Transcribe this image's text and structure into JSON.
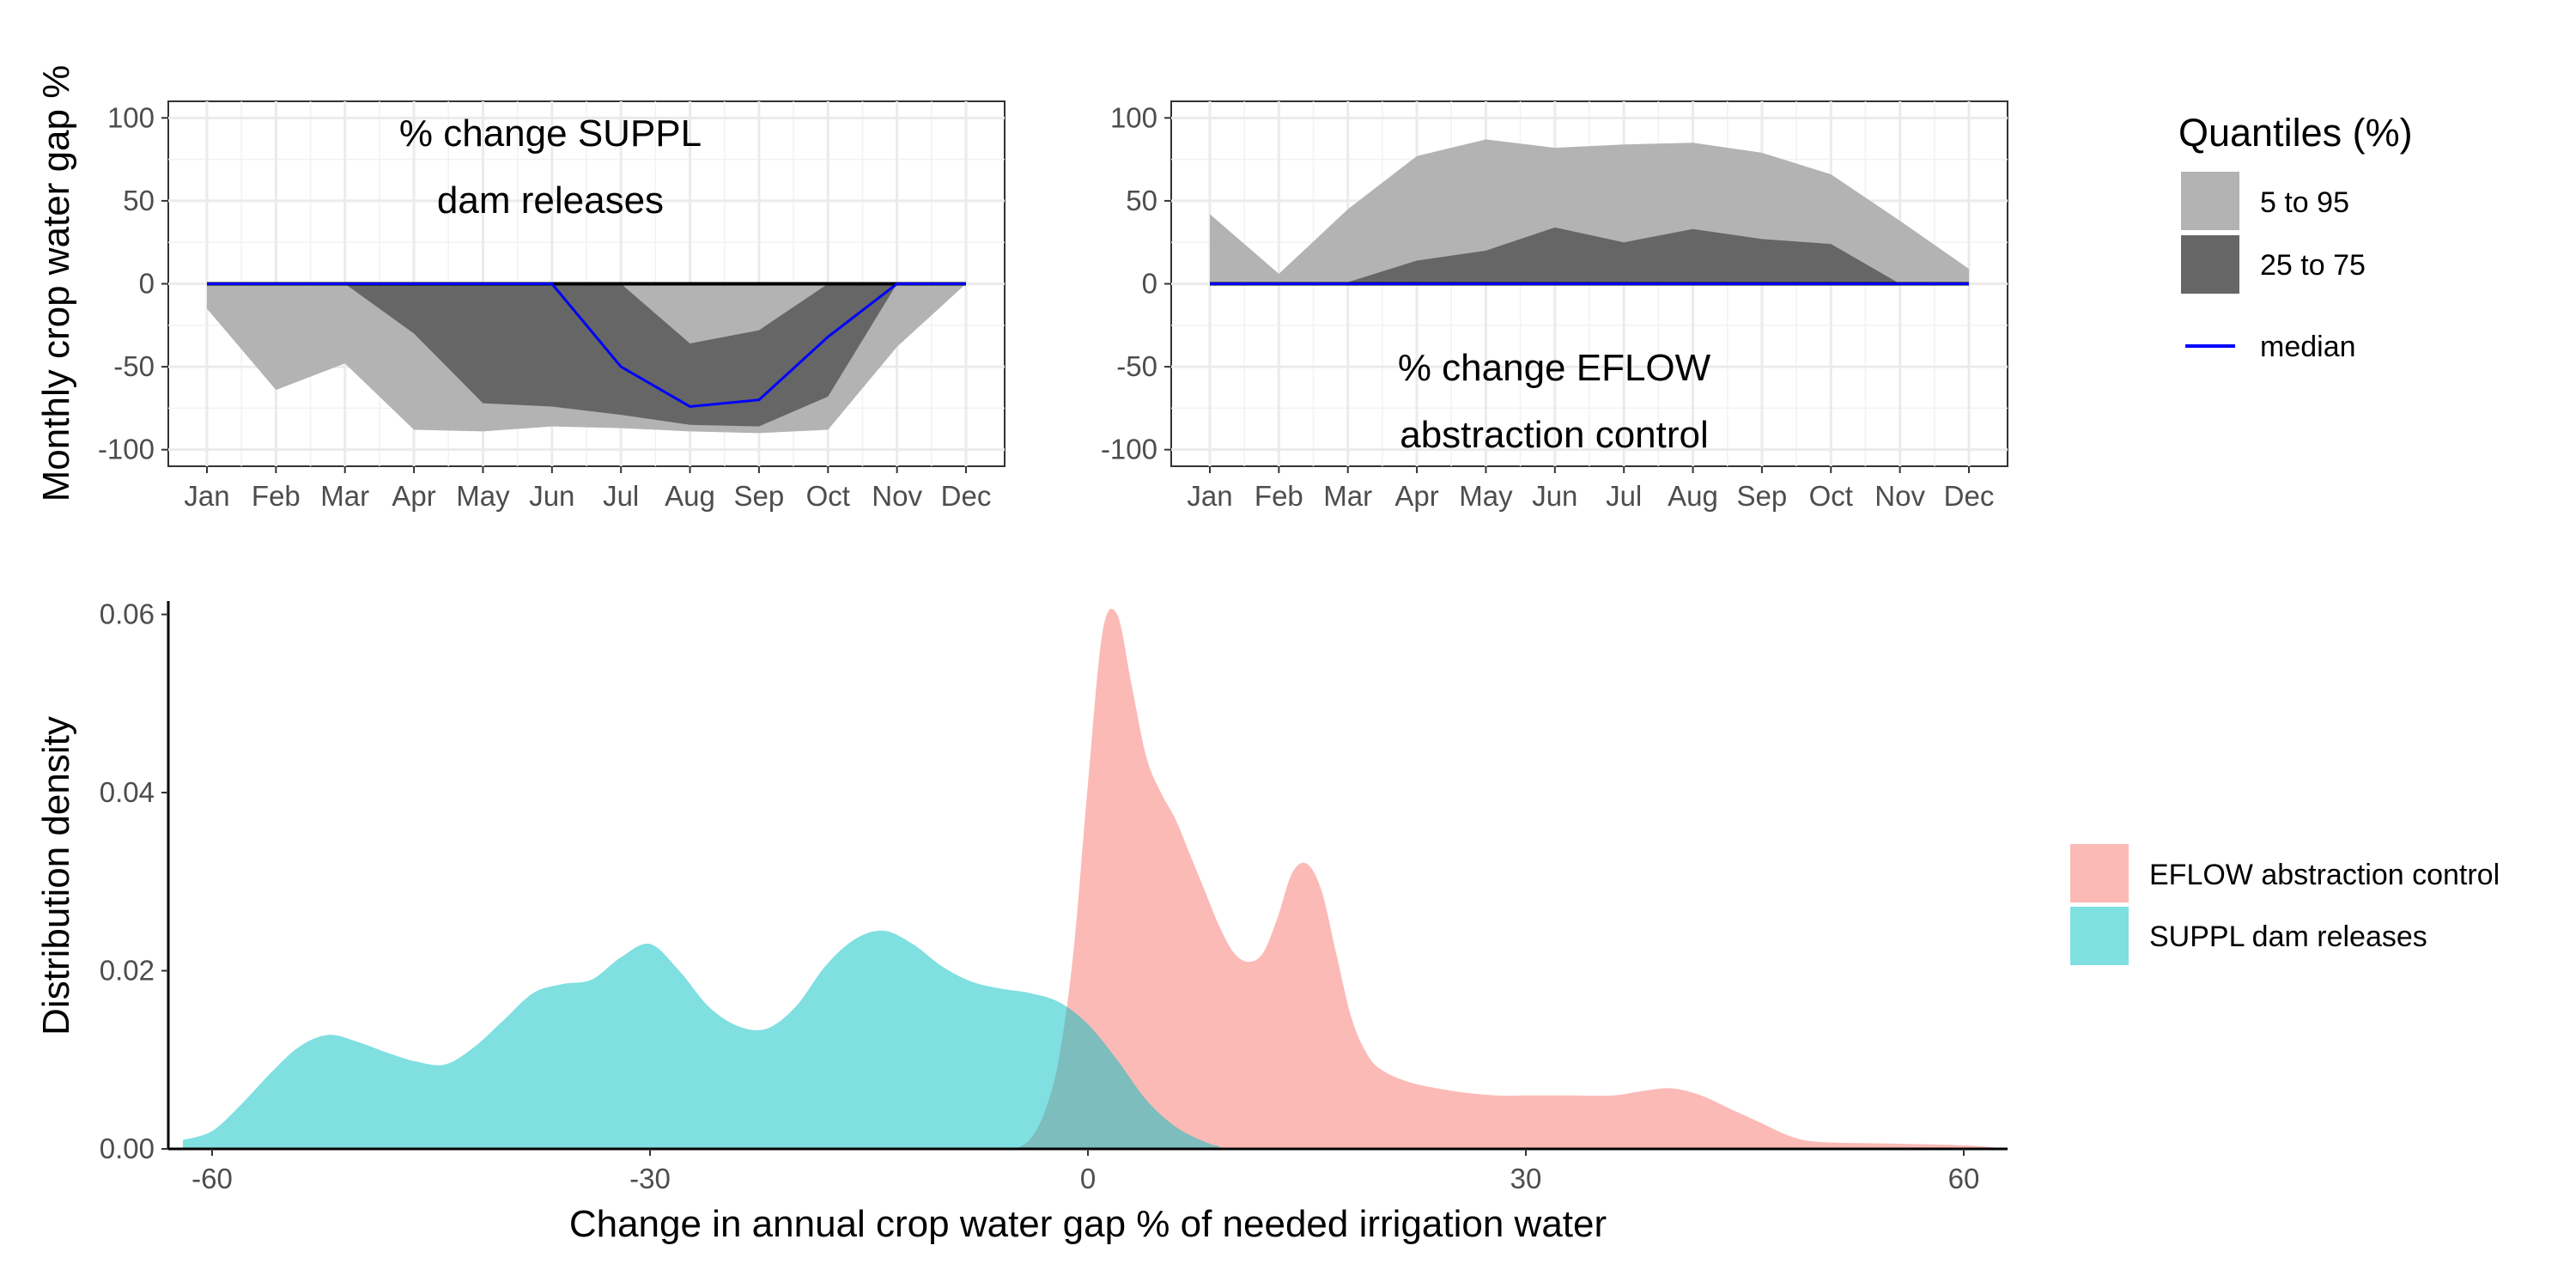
{
  "chart_data": [
    {
      "type": "area",
      "id": "suppl",
      "title_line1": "% change SUPPL",
      "title_line2": "dam releases",
      "ylabel": "Monthly crop water gap %",
      "ylim": [
        -110,
        110
      ],
      "yticks": [
        100,
        50,
        0,
        -50,
        -100
      ],
      "categories": [
        "Jan",
        "Feb",
        "Mar",
        "Apr",
        "May",
        "Jun",
        "Jul",
        "Aug",
        "Sep",
        "Oct",
        "Nov",
        "Dec"
      ],
      "q5": [
        -15,
        -64,
        -48,
        -88,
        -89,
        -86,
        -87,
        -89,
        -90,
        -88,
        -38,
        0
      ],
      "q25": [
        0,
        0,
        0,
        -30,
        -72,
        -74,
        -79,
        -85,
        -86,
        -68,
        0,
        0
      ],
      "q75": [
        0,
        0,
        0,
        0,
        0,
        0,
        0,
        -36,
        -28,
        0,
        0,
        0
      ],
      "q95": [
        0,
        0,
        0,
        0,
        0,
        0,
        0,
        0,
        0,
        0,
        0,
        0
      ],
      "median": [
        0,
        0,
        0,
        0,
        0,
        0,
        -50,
        -74,
        -70,
        -32,
        0,
        0
      ]
    },
    {
      "type": "area",
      "id": "eflow",
      "title_line1": "% change EFLOW",
      "title_line2": "abstraction control",
      "ylim": [
        -110,
        110
      ],
      "yticks": [
        100,
        50,
        0,
        -50,
        -100
      ],
      "categories": [
        "Jan",
        "Feb",
        "Mar",
        "Apr",
        "May",
        "Jun",
        "Jul",
        "Aug",
        "Sep",
        "Oct",
        "Nov",
        "Dec"
      ],
      "q5": [
        0,
        0,
        0,
        0,
        0,
        0,
        0,
        0,
        0,
        0,
        0,
        0
      ],
      "q25": [
        0,
        0,
        0,
        0,
        0,
        0,
        0,
        0,
        0,
        0,
        0,
        0
      ],
      "q75": [
        0,
        0,
        1,
        14,
        20,
        34,
        25,
        33,
        27,
        24,
        0,
        0
      ],
      "q95": [
        42,
        6,
        45,
        77,
        87,
        82,
        84,
        85,
        79,
        66,
        38,
        9
      ],
      "median": [
        0,
        0,
        0,
        0,
        0,
        0,
        0,
        0,
        0,
        0,
        0,
        0
      ]
    },
    {
      "type": "area",
      "id": "density",
      "xlabel": "Change in annual crop water gap % of needed irrigation water",
      "ylabel": "Distribution density",
      "xlim": [
        -63,
        63
      ],
      "ylim": [
        0,
        0.0615
      ],
      "xticks": [
        -60,
        -30,
        0,
        30,
        60
      ],
      "yticks": [
        "0.00",
        "0.02",
        "0.04",
        "0.06"
      ],
      "series": [
        {
          "name": "EFLOW abstraction control",
          "color": "#f8766d",
          "x": [
            -5,
            -4,
            -3,
            -2,
            -1,
            0,
            1,
            2,
            3,
            4,
            5,
            6,
            7,
            8,
            9,
            10,
            11,
            12,
            13,
            14,
            15,
            16,
            17,
            18,
            19,
            20,
            22,
            25,
            28,
            30,
            33,
            36,
            38,
            40,
            42,
            44,
            46,
            48,
            50,
            55,
            60,
            62
          ],
          "values": [
            0,
            0.001,
            0.004,
            0.01,
            0.022,
            0.041,
            0.058,
            0.06,
            0.052,
            0.044,
            0.04,
            0.037,
            0.033,
            0.029,
            0.025,
            0.022,
            0.021,
            0.022,
            0.026,
            0.031,
            0.032,
            0.029,
            0.022,
            0.015,
            0.011,
            0.009,
            0.0075,
            0.0065,
            0.006,
            0.006,
            0.006,
            0.006,
            0.0065,
            0.0068,
            0.006,
            0.0045,
            0.003,
            0.0015,
            0.0008,
            0.0006,
            0.0004,
            0.0002
          ]
        },
        {
          "name": "SUPPL dam releases",
          "color": "#00bfc4",
          "x": [
            -62,
            -60,
            -58,
            -56,
            -54,
            -52,
            -50,
            -48,
            -46,
            -44,
            -42,
            -40,
            -38,
            -36,
            -34,
            -32,
            -30,
            -28,
            -26,
            -24,
            -22,
            -20,
            -18,
            -16,
            -14,
            -12,
            -10,
            -8,
            -6,
            -4,
            -2,
            0,
            2,
            4,
            6,
            8,
            9
          ],
          "values": [
            0.001,
            0.002,
            0.005,
            0.0085,
            0.0115,
            0.0128,
            0.012,
            0.0108,
            0.0098,
            0.0095,
            0.0115,
            0.0145,
            0.0175,
            0.0185,
            0.019,
            0.0215,
            0.023,
            0.02,
            0.016,
            0.0138,
            0.0135,
            0.016,
            0.0205,
            0.0235,
            0.0245,
            0.023,
            0.0205,
            0.0188,
            0.018,
            0.0175,
            0.0165,
            0.014,
            0.01,
            0.0055,
            0.0025,
            0.0008,
            0.0003
          ]
        }
      ]
    }
  ],
  "legend_quantiles": {
    "title": "Quantiles (%)",
    "band_outer": "5 to 95",
    "band_inner": "25 to 75",
    "median": "median",
    "outer_color": "#b3b3b3",
    "inner_color": "#666666",
    "median_color": "#0000ff"
  },
  "legend_density": {
    "items": [
      "EFLOW abstraction control",
      "SUPPL dam releases"
    ],
    "colors": [
      "#f8766d",
      "#00bfc4"
    ]
  }
}
